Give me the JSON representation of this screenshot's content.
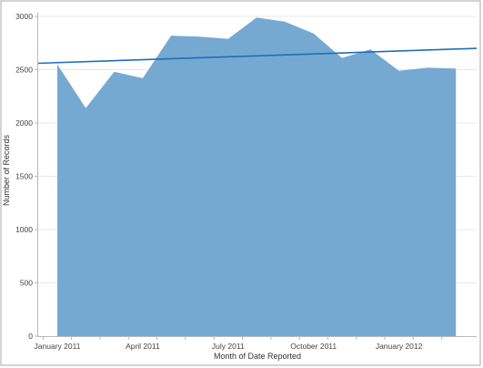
{
  "chart_data": {
    "type": "area",
    "xlabel": "Month of Date Reported",
    "ylabel": "Number of Records",
    "ylim": [
      0,
      3000
    ],
    "yticks": [
      0,
      500,
      1000,
      1500,
      2000,
      2500,
      3000
    ],
    "x": [
      "2011-01",
      "2011-02",
      "2011-03",
      "2011-04",
      "2011-05",
      "2011-06",
      "2011-07",
      "2011-08",
      "2011-09",
      "2011-10",
      "2011-11",
      "2011-12",
      "2012-01",
      "2012-02",
      "2012-03"
    ],
    "xtick_labels": [
      {
        "month": "2011-01",
        "label": "January 2011"
      },
      {
        "month": "2011-04",
        "label": "April 2011"
      },
      {
        "month": "2011-07",
        "label": "July 2011"
      },
      {
        "month": "2011-10",
        "label": "October 2011"
      },
      {
        "month": "2012-01",
        "label": "January 2012"
      }
    ],
    "series": [
      {
        "values": [
          2550,
          2140,
          2480,
          2420,
          2820,
          2810,
          2790,
          2990,
          2950,
          2840,
          2610,
          2690,
          2490,
          2520,
          2510
        ]
      }
    ],
    "trend_line": {
      "start": 2560,
      "end": 2700
    },
    "grid": "horizontal",
    "colors": {
      "area": "#76a9d2",
      "trend": "#1f6fb5",
      "grid": "#e8e8e8",
      "axis": "#b8b8b8",
      "frame": "#a8a8a8"
    }
  }
}
